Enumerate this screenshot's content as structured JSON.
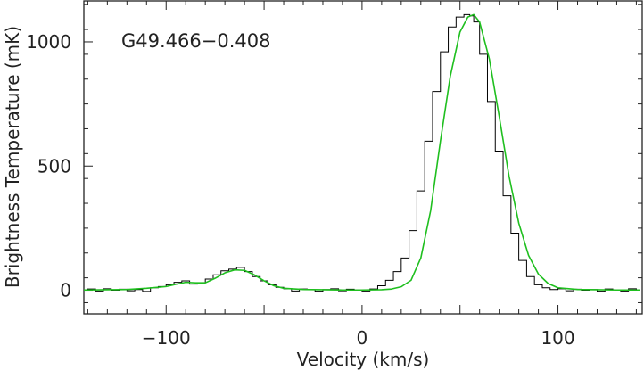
{
  "chart_data": {
    "type": "line",
    "annotation": "G49.466−0.408",
    "xlabel": "Velocity (km/s)",
    "ylabel": "Brightness Temperature (mK)",
    "xlim": [
      -142,
      143
    ],
    "ylim": [
      -95,
      1165
    ],
    "x_ticks": [
      -100,
      0,
      100
    ],
    "x_tick_labels": [
      "−100",
      "0",
      "100"
    ],
    "y_ticks": [
      0,
      500,
      1000
    ],
    "y_tick_labels": [
      "0",
      "500",
      "1000"
    ],
    "grid": false,
    "series": [
      {
        "style": "histogram",
        "color": "#000000",
        "x": [
          -142,
          -138,
          -134,
          -130,
          -126,
          -122,
          -118,
          -114,
          -110,
          -106,
          -102,
          -98,
          -94,
          -90,
          -86,
          -82,
          -78,
          -74,
          -70,
          -66,
          -62,
          -58,
          -54,
          -50,
          -46,
          -42,
          -38,
          -34,
          -30,
          -26,
          -22,
          -18,
          -14,
          -10,
          -6,
          -2,
          2,
          6,
          10,
          14,
          18,
          22,
          26,
          30,
          34,
          38,
          42,
          46,
          50,
          54,
          56,
          58,
          62,
          66,
          70,
          74,
          78,
          82,
          86,
          90,
          94,
          98,
          102,
          106,
          110,
          114,
          118,
          122,
          126,
          130,
          134,
          138,
          142
        ],
        "values": [
          2,
          5,
          -3,
          6,
          0,
          4,
          -2,
          3,
          -5,
          10,
          15,
          22,
          32,
          38,
          25,
          30,
          45,
          62,
          78,
          85,
          92,
          75,
          55,
          38,
          22,
          12,
          6,
          -3,
          5,
          2,
          -4,
          3,
          6,
          -2,
          4,
          0,
          -3,
          5,
          18,
          40,
          75,
          130,
          240,
          400,
          600,
          800,
          960,
          1060,
          1100,
          1110,
          1105,
          1080,
          950,
          760,
          560,
          380,
          230,
          120,
          55,
          22,
          10,
          3,
          6,
          -2,
          4,
          0,
          3,
          -4,
          5,
          2,
          -3,
          6,
          0
        ]
      },
      {
        "style": "fit",
        "color": "#1fbf1f",
        "x": [
          -142,
          -130,
          -120,
          -110,
          -100,
          -95,
          -90,
          -85,
          -80,
          -75,
          -70,
          -65,
          -60,
          -55,
          -50,
          -45,
          -40,
          -30,
          -20,
          -10,
          0,
          10,
          15,
          20,
          25,
          30,
          35,
          40,
          45,
          50,
          54,
          57,
          60,
          65,
          70,
          75,
          80,
          85,
          90,
          95,
          100,
          110,
          120,
          130,
          142
        ],
        "values": [
          1,
          2,
          3,
          8,
          15,
          24,
          32,
          30,
          30,
          48,
          70,
          82,
          80,
          62,
          38,
          18,
          8,
          3,
          2,
          1,
          1,
          2,
          5,
          14,
          40,
          130,
          320,
          600,
          860,
          1040,
          1100,
          1110,
          1080,
          930,
          700,
          460,
          270,
          140,
          65,
          27,
          10,
          3,
          2,
          1,
          1
        ]
      }
    ]
  }
}
